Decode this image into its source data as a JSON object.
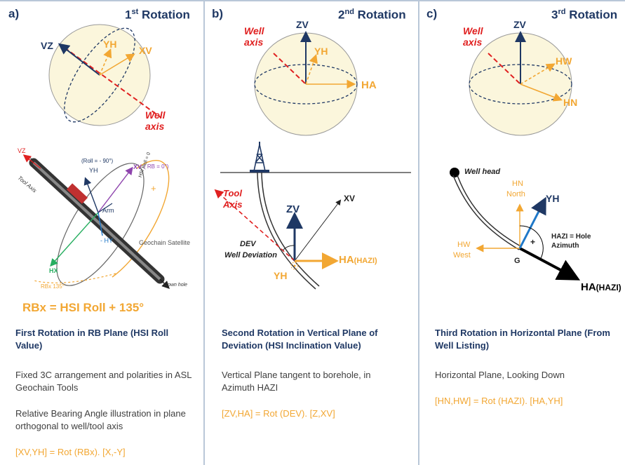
{
  "panels": [
    {
      "letter": "a)",
      "title_num": "1",
      "title_sup": "st",
      "title_rest": " Rotation",
      "sphere_labels": {
        "vz": "VZ",
        "yh": "YH",
        "xv": "XV",
        "well_axis": "Well\naxis"
      },
      "tool_labels": {
        "vz": "VZ",
        "tool_axis": "Tool Axis",
        "roll": "(Roll = - 90°)",
        "yh": "YH",
        "xv": "XV",
        "rb": "( RB = 0°)",
        "hsi_roll": "HSI Roll = 0",
        "arm": "Arm",
        "minus_hy": "- HY",
        "hx": "HX",
        "geochain": "Geochain Satellite",
        "rbx": "RBx 135°",
        "downhole": "Down hole"
      },
      "formula": "RBx = HSI Roll + 135°",
      "heading": "First Rotation in RB Plane (HSI Roll Value)",
      "desc1": "Fixed 3C arrangement and polarities in ASL Geochain Tools",
      "desc2": "Relative Bearing Angle illustration in plane orthogonal to well/tool axis",
      "eq": "[XV,YH] = Rot (RBx). [X,-Y]"
    },
    {
      "letter": "b)",
      "title_num": "2",
      "title_sup": "nd",
      "title_rest": " Rotation",
      "sphere_labels": {
        "zv": "ZV",
        "yh": "YH",
        "ha": "HA",
        "well_axis": "Well\naxis"
      },
      "well_labels": {
        "tool_axis": "Tool\nAxis",
        "xv": "XV",
        "zv": "ZV",
        "dev": "DEV",
        "well_deviation": "Well Deviation",
        "ha": "HA",
        "hazi": "(HAZI)",
        "yh": "YH"
      },
      "heading": "Second Rotation in Vertical Plane of Deviation (HSI Inclination Value)",
      "desc1": "Vertical Plane tangent to borehole, in Azimuth HAZI",
      "eq": "[ZV,HA] = Rot (DEV). [Z,XV]"
    },
    {
      "letter": "c)",
      "title_num": "3",
      "title_sup": "rd",
      "title_rest": " Rotation",
      "sphere_labels": {
        "zv": "ZV",
        "hw": "HW",
        "hn": "HN",
        "well_axis": "Well\naxis"
      },
      "plan_labels": {
        "wellhead": "Well head",
        "hn": "HN",
        "north": "North",
        "yh": "YH",
        "hazi": "HAZI = Hole\nAzimuth",
        "plus": "+",
        "hw": "HW",
        "west": "West",
        "g": "G",
        "ha": "HA",
        "ha_sub": "(HAZI)"
      },
      "heading": "Third Rotation in Horizontal Plane (From Well Listing)",
      "desc1": "Horizontal Plane, Looking Down",
      "eq": "[HN,HW] = Rot (HAZI). [HA,YH]"
    }
  ],
  "colors": {
    "navy": "#1f3864",
    "orange": "#f2a733",
    "red": "#e02020",
    "sphere": "#fbf6dc"
  }
}
